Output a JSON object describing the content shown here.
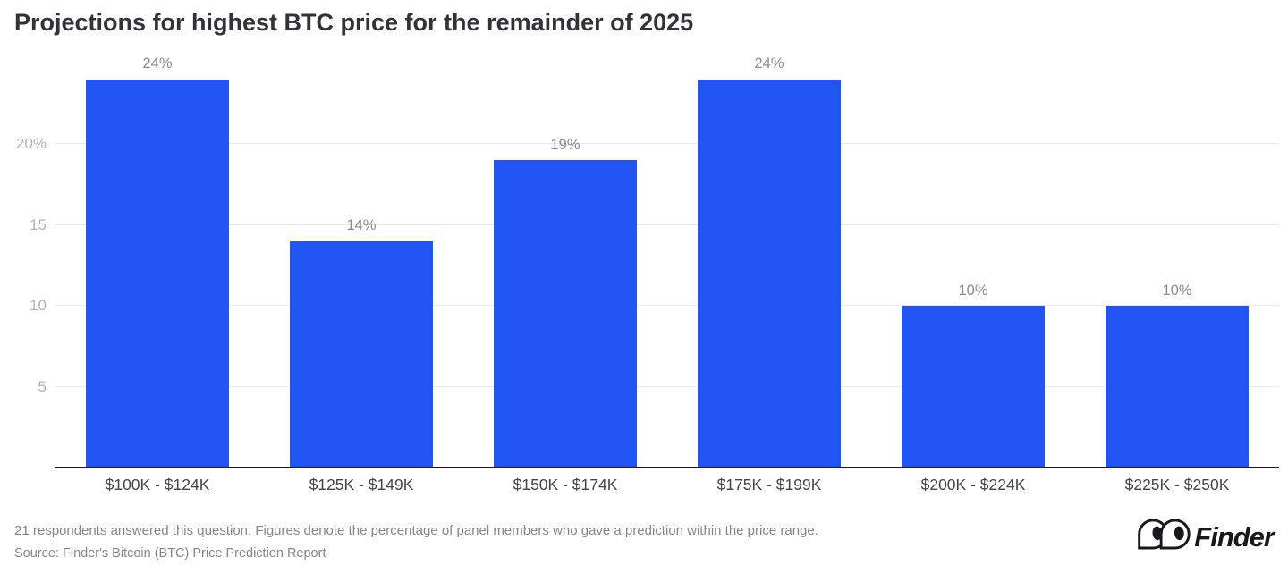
{
  "chart_data": {
    "type": "bar",
    "title": "Projections for highest BTC price for the remainder of 2025",
    "categories": [
      "$100K - $124K",
      "$125K - $149K",
      "$150K - $174K",
      "$175K - $199K",
      "$200K - $224K",
      "$225K - $250K"
    ],
    "values": [
      24,
      14,
      19,
      24,
      10,
      10
    ],
    "value_labels": [
      "24%",
      "14%",
      "19%",
      "24%",
      "10%",
      "10%"
    ],
    "yticks": [
      {
        "value": 5,
        "label": "5"
      },
      {
        "value": 10,
        "label": "10"
      },
      {
        "value": 15,
        "label": "15"
      },
      {
        "value": 20,
        "label": "20%"
      }
    ],
    "ylim": [
      0,
      25.7
    ],
    "xlabel": "",
    "ylabel": "",
    "grid": "horizontal",
    "legend": "none",
    "bar_color": "#2254F4"
  },
  "colors": {
    "bar": "#2254F4",
    "gridline": "#E9E9EC",
    "axis_line": "#1A1B20",
    "title_text": "#32333A",
    "tick_text": "#B2B3B8",
    "value_label_text": "#8A8B90",
    "category_text": "#43444A",
    "footer_text": "#85868C",
    "logo_text": "#17181C"
  },
  "footer": {
    "note": "21 respondents answered this question. Figures denote the percentage of panel members who gave a prediction within the price range.",
    "source": "Source: Finder's Bitcoin (BTC) Price Prediction Report"
  },
  "logo": {
    "text": "Finder",
    "icon": "finder-eyes-logo"
  }
}
